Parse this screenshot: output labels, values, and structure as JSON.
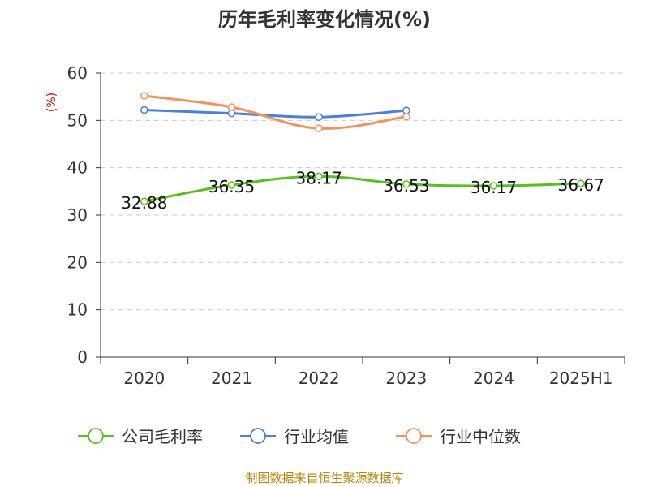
{
  "chart_data": {
    "type": "line",
    "title": "历年毛利率变化情况(%)",
    "ylabel": "(%)",
    "categories": [
      "2020",
      "2021",
      "2022",
      "2023",
      "2024",
      "2025H1"
    ],
    "ylim": [
      0,
      60
    ],
    "yticks": [
      "0",
      "10",
      "20",
      "30",
      "40",
      "50",
      "60"
    ],
    "grid": true,
    "legend_position": "bottom",
    "series": [
      {
        "name": "公司毛利率",
        "color": "#52c41a",
        "values": [
          32.88,
          36.35,
          38.17,
          36.53,
          36.17,
          36.67
        ],
        "labels": [
          "32.88",
          "36.35",
          "38.17",
          "36.53",
          "36.17",
          "36.67"
        ]
      },
      {
        "name": "行业均值",
        "color": "#4a7fe0",
        "values": [
          52.2,
          51.5,
          50.7,
          52.1,
          null,
          null
        ]
      },
      {
        "name": "行业中位数",
        "color": "#f5925a",
        "values": [
          55.2,
          52.8,
          48.3,
          50.8,
          null,
          null
        ]
      }
    ]
  },
  "footer": "制图数据来自恒生聚源数据库"
}
